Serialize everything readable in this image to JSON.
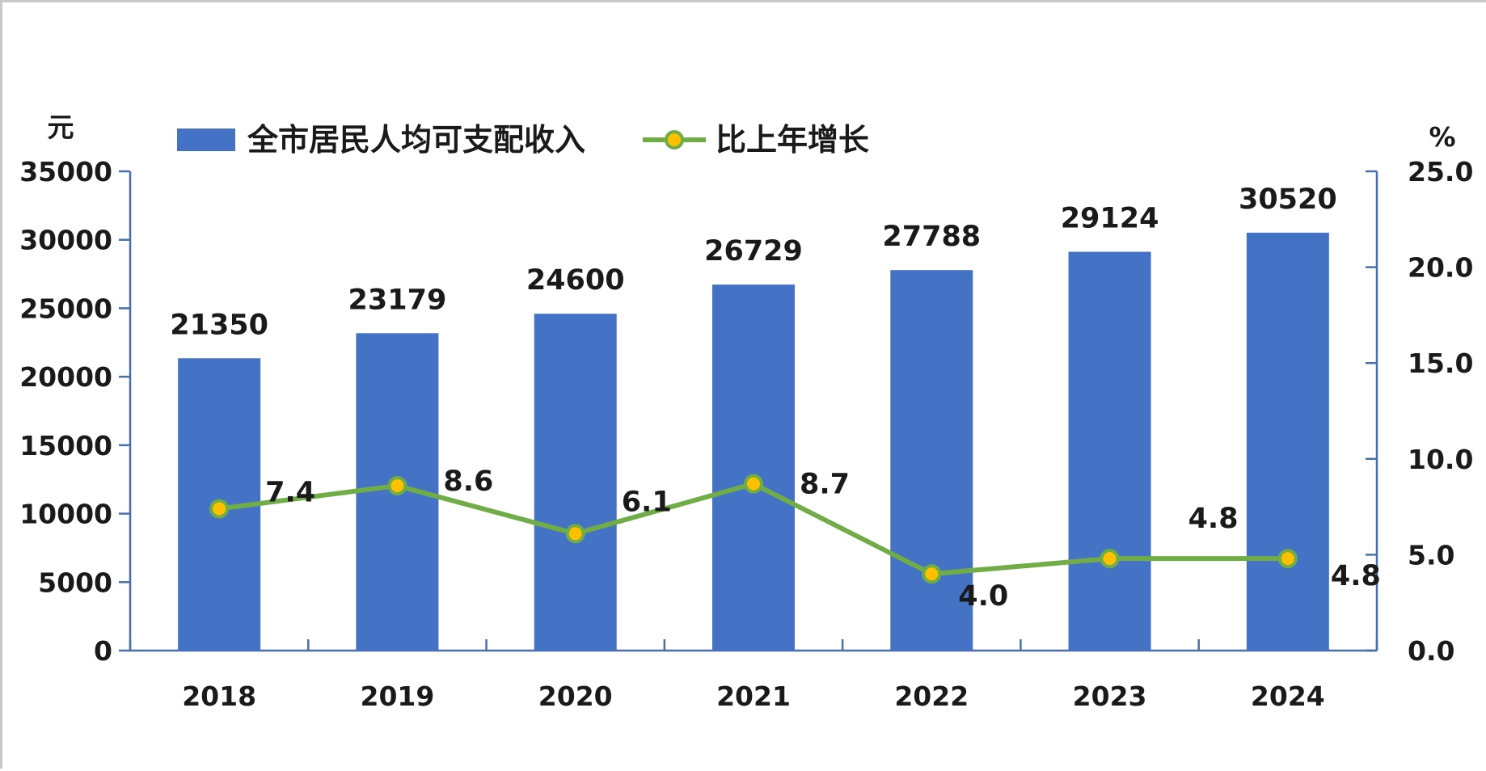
{
  "chart_data": {
    "type": "bar",
    "categories": [
      "2018",
      "2019",
      "2020",
      "2021",
      "2022",
      "2023",
      "2024"
    ],
    "series": [
      {
        "name": "全市居民人均可支配收入",
        "type": "bar",
        "axis": "left",
        "values": [
          21350,
          23179,
          24600,
          26729,
          27788,
          29124,
          30520
        ],
        "labels": [
          "21350",
          "23179",
          "24600",
          "26729",
          "27788",
          "29124",
          "30520"
        ],
        "color": "#4472c4"
      },
      {
        "name": "比上年增长",
        "type": "line",
        "axis": "right",
        "values": [
          7.4,
          8.6,
          6.1,
          8.7,
          4.0,
          4.8,
          4.8
        ],
        "labels": [
          "7.4",
          "8.6",
          "6.1",
          "8.7",
          "4.0",
          "4.8",
          "4.8"
        ],
        "line_color": "#70ad47",
        "marker_color": "#ffc000"
      }
    ],
    "left_axis": {
      "unit": "元",
      "ylim": [
        0,
        35000
      ],
      "ticks": [
        "0",
        "5000",
        "10000",
        "15000",
        "20000",
        "25000",
        "30000",
        "35000"
      ]
    },
    "right_axis": {
      "unit": "%",
      "ylim": [
        0,
        25
      ],
      "ticks": [
        "0.0",
        "5.0",
        "10.0",
        "15.0",
        "20.0",
        "25.0"
      ]
    },
    "legend": {
      "position": "top",
      "entries": [
        "全市居民人均可支配收入",
        "比上年增长"
      ]
    },
    "grid": false,
    "axis_color": "#4a6fa8"
  }
}
